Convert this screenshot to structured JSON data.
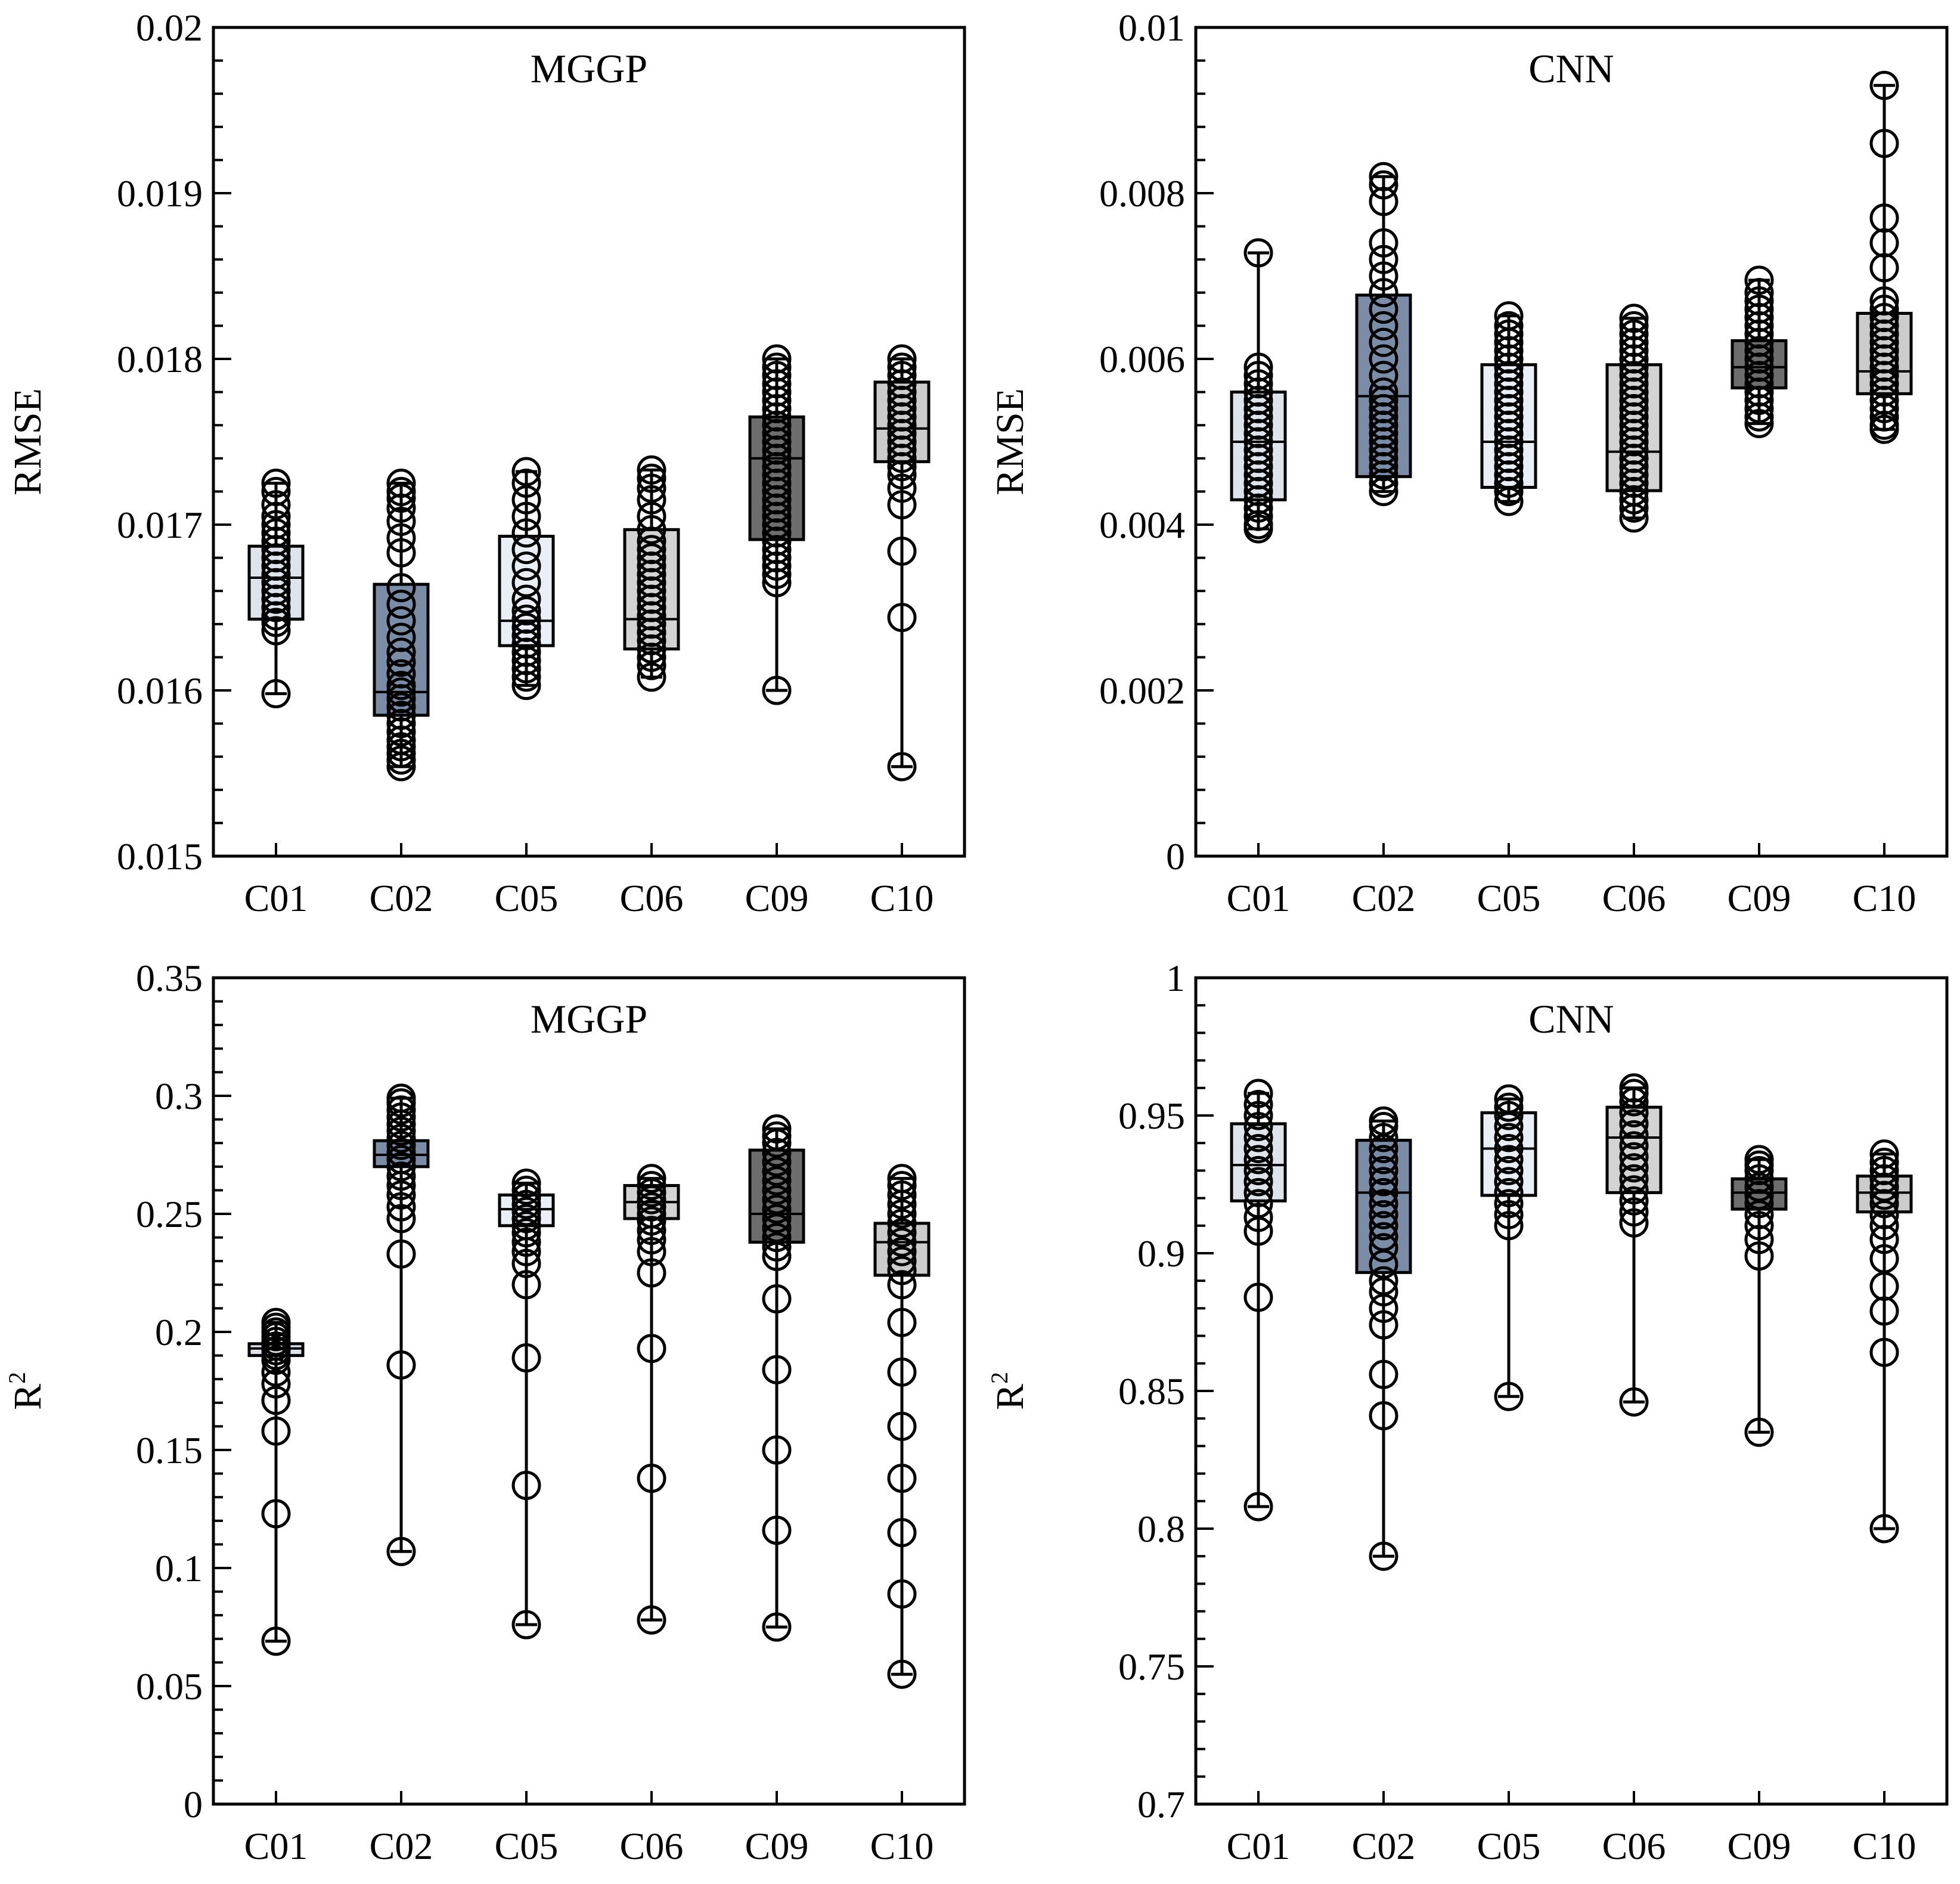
{
  "colors": {
    "C01": "#dfe4ea",
    "C02": "#7a8ca6",
    "C05": "#e9eff4",
    "C06": "#d3d3d3",
    "C09": "#6d6d6d",
    "C10": "#cccccc"
  },
  "chart_data": [
    {
      "type": "box",
      "title": "MGGP",
      "ylabel": "RMSE",
      "ylabel_sup": "",
      "ylim": [
        0.015,
        0.02
      ],
      "yticks": [
        0.015,
        0.016,
        0.017,
        0.018,
        0.019,
        0.02
      ],
      "ytick_labels": [
        "0.015",
        "0.016",
        "0.017",
        "0.018",
        "0.019",
        "0.02"
      ],
      "minor_step": 0.0002,
      "categories": [
        "C01",
        "C02",
        "C05",
        "C06",
        "C09",
        "C10"
      ],
      "boxes": [
        {
          "q1": 0.01643,
          "median": 0.01668,
          "q3": 0.01687,
          "whisker_low": 0.01598,
          "whisker_high": 0.01725,
          "points": [
            0.01598,
            0.01636,
            0.01641,
            0.01645,
            0.0165,
            0.01655,
            0.0166,
            0.01665,
            0.0167,
            0.01675,
            0.0168,
            0.01685,
            0.0169,
            0.01695,
            0.017,
            0.01705,
            0.01712,
            0.0172,
            0.01725
          ]
        },
        {
          "q1": 0.01585,
          "median": 0.01599,
          "q3": 0.01664,
          "whisker_low": 0.01554,
          "whisker_high": 0.01725,
          "points": [
            0.01554,
            0.01558,
            0.01562,
            0.01566,
            0.0157,
            0.01575,
            0.0158,
            0.01585,
            0.0159,
            0.01595,
            0.01599,
            0.01603,
            0.0161,
            0.01617,
            0.01623,
            0.01632,
            0.01642,
            0.01652,
            0.01662,
            0.01683,
            0.01692,
            0.01702,
            0.0171,
            0.01716,
            0.0172,
            0.01725
          ]
        },
        {
          "q1": 0.01627,
          "median": 0.01642,
          "q3": 0.01693,
          "whisker_low": 0.01603,
          "whisker_high": 0.01732,
          "points": [
            0.01603,
            0.01608,
            0.01613,
            0.01618,
            0.01623,
            0.01628,
            0.01633,
            0.01638,
            0.01643,
            0.01648,
            0.01655,
            0.01665,
            0.01675,
            0.01685,
            0.01695,
            0.01705,
            0.01715,
            0.01725,
            0.01732
          ]
        },
        {
          "q1": 0.01625,
          "median": 0.01643,
          "q3": 0.01697,
          "whisker_low": 0.01608,
          "whisker_high": 0.01733,
          "points": [
            0.01608,
            0.01615,
            0.0162,
            0.01625,
            0.0163,
            0.01635,
            0.0164,
            0.01645,
            0.0165,
            0.01655,
            0.0166,
            0.01665,
            0.0167,
            0.01675,
            0.0168,
            0.01685,
            0.0169,
            0.01697,
            0.01705,
            0.01715,
            0.01722,
            0.01728,
            0.01733
          ]
        },
        {
          "q1": 0.01691,
          "median": 0.0174,
          "q3": 0.01765,
          "whisker_low": 0.016,
          "whisker_high": 0.018,
          "points": [
            0.016,
            0.01665,
            0.0167,
            0.01675,
            0.0168,
            0.01685,
            0.0169,
            0.01695,
            0.017,
            0.01705,
            0.0171,
            0.01715,
            0.0172,
            0.01725,
            0.0173,
            0.01735,
            0.0174,
            0.01745,
            0.0175,
            0.01755,
            0.0176,
            0.01765,
            0.0177,
            0.01775,
            0.0178,
            0.01785,
            0.0179,
            0.01795,
            0.018
          ]
        },
        {
          "q1": 0.01738,
          "median": 0.01758,
          "q3": 0.01786,
          "whisker_low": 0.01554,
          "whisker_high": 0.018,
          "points": [
            0.01554,
            0.01644,
            0.01684,
            0.01712,
            0.01722,
            0.0173,
            0.01735,
            0.0174,
            0.01745,
            0.0175,
            0.01755,
            0.0176,
            0.01765,
            0.0177,
            0.01775,
            0.0178,
            0.01785,
            0.0179,
            0.01795,
            0.018
          ]
        }
      ]
    },
    {
      "type": "box",
      "title": "CNN",
      "ylabel": "RMSE",
      "ylabel_sup": "",
      "ylim": [
        0,
        0.01
      ],
      "yticks": [
        0,
        0.002,
        0.004,
        0.006,
        0.008,
        0.01
      ],
      "ytick_labels": [
        "0",
        "0.002",
        "0.004",
        "0.006",
        "0.008",
        "0.01"
      ],
      "minor_step": 0.0004,
      "categories": [
        "C01",
        "C02",
        "C05",
        "C06",
        "C09",
        "C10"
      ],
      "boxes": [
        {
          "q1": 0.0043,
          "median": 0.005,
          "q3": 0.0056,
          "whisker_low": 0.00395,
          "whisker_high": 0.00728,
          "points": [
            0.00395,
            0.004,
            0.0041,
            0.0042,
            0.0043,
            0.0044,
            0.0045,
            0.0046,
            0.0047,
            0.0048,
            0.0049,
            0.005,
            0.0051,
            0.0052,
            0.0053,
            0.0054,
            0.0055,
            0.0056,
            0.0057,
            0.0058,
            0.0059,
            0.00728
          ]
        },
        {
          "q1": 0.00458,
          "median": 0.00555,
          "q3": 0.00677,
          "whisker_low": 0.0044,
          "whisker_high": 0.0082,
          "points": [
            0.0044,
            0.0045,
            0.0046,
            0.0047,
            0.0048,
            0.0049,
            0.005,
            0.0051,
            0.0052,
            0.0053,
            0.0054,
            0.0055,
            0.0056,
            0.0058,
            0.006,
            0.0062,
            0.0064,
            0.0066,
            0.0068,
            0.007,
            0.0072,
            0.0074,
            0.0079,
            0.0081,
            0.0082
          ]
        },
        {
          "q1": 0.00445,
          "median": 0.005,
          "q3": 0.00593,
          "whisker_low": 0.00428,
          "whisker_high": 0.00652,
          "points": [
            0.00428,
            0.0044,
            0.0045,
            0.0046,
            0.0047,
            0.0048,
            0.0049,
            0.005,
            0.0051,
            0.0052,
            0.0053,
            0.0054,
            0.0055,
            0.0056,
            0.0057,
            0.0058,
            0.0059,
            0.006,
            0.0061,
            0.0062,
            0.0063,
            0.0064,
            0.00652
          ]
        },
        {
          "q1": 0.00441,
          "median": 0.00488,
          "q3": 0.00593,
          "whisker_low": 0.00408,
          "whisker_high": 0.00649,
          "points": [
            0.00408,
            0.0042,
            0.0043,
            0.0044,
            0.0045,
            0.0046,
            0.0047,
            0.0048,
            0.0049,
            0.005,
            0.0051,
            0.0052,
            0.0053,
            0.0054,
            0.0055,
            0.0056,
            0.0057,
            0.0058,
            0.0059,
            0.006,
            0.0061,
            0.0062,
            0.0063,
            0.0064,
            0.00649
          ]
        },
        {
          "q1": 0.00565,
          "median": 0.0059,
          "q3": 0.00622,
          "whisker_low": 0.00522,
          "whisker_high": 0.00695,
          "points": [
            0.00522,
            0.0053,
            0.0054,
            0.0055,
            0.0056,
            0.0057,
            0.0058,
            0.0059,
            0.006,
            0.0061,
            0.0062,
            0.0063,
            0.0064,
            0.0065,
            0.0066,
            0.0067,
            0.0068,
            0.00695
          ]
        },
        {
          "q1": 0.00558,
          "median": 0.00585,
          "q3": 0.00655,
          "whisker_low": 0.00515,
          "whisker_high": 0.0093,
          "points": [
            0.00515,
            0.0052,
            0.0053,
            0.0054,
            0.0055,
            0.0056,
            0.0057,
            0.0058,
            0.0059,
            0.006,
            0.0061,
            0.0062,
            0.0063,
            0.0064,
            0.0065,
            0.0066,
            0.0067,
            0.0071,
            0.0074,
            0.0077,
            0.0086,
            0.0093
          ]
        }
      ]
    },
    {
      "type": "box",
      "title": "MGGP",
      "ylabel": "R",
      "ylabel_sup": "2",
      "ylim": [
        0,
        0.35
      ],
      "yticks": [
        0,
        0.05,
        0.1,
        0.15,
        0.2,
        0.25,
        0.3,
        0.35
      ],
      "ytick_labels": [
        "0",
        "0.05",
        "0.1",
        "0.15",
        "0.2",
        "0.25",
        "0.3",
        "0.35"
      ],
      "minor_step": 0.01,
      "categories": [
        "C01",
        "C02",
        "C05",
        "C06",
        "C09",
        "C10"
      ],
      "boxes": [
        {
          "q1": 0.19,
          "median": 0.193,
          "q3": 0.195,
          "whisker_low": 0.069,
          "whisker_high": 0.204,
          "points": [
            0.069,
            0.123,
            0.158,
            0.171,
            0.178,
            0.183,
            0.188,
            0.19,
            0.192,
            0.194,
            0.196,
            0.198,
            0.2,
            0.202,
            0.204
          ]
        },
        {
          "q1": 0.27,
          "median": 0.275,
          "q3": 0.281,
          "whisker_low": 0.107,
          "whisker_high": 0.299,
          "points": [
            0.107,
            0.186,
            0.233,
            0.248,
            0.253,
            0.258,
            0.262,
            0.266,
            0.27,
            0.273,
            0.276,
            0.279,
            0.282,
            0.285,
            0.288,
            0.291,
            0.294,
            0.297,
            0.299
          ]
        },
        {
          "q1": 0.245,
          "median": 0.252,
          "q3": 0.258,
          "whisker_low": 0.076,
          "whisker_high": 0.263,
          "points": [
            0.076,
            0.135,
            0.189,
            0.22,
            0.229,
            0.234,
            0.238,
            0.242,
            0.245,
            0.248,
            0.251,
            0.254,
            0.257,
            0.26,
            0.263
          ]
        },
        {
          "q1": 0.248,
          "median": 0.255,
          "q3": 0.262,
          "whisker_low": 0.078,
          "whisker_high": 0.265,
          "points": [
            0.078,
            0.138,
            0.193,
            0.225,
            0.234,
            0.239,
            0.243,
            0.247,
            0.25,
            0.253,
            0.256,
            0.259,
            0.262,
            0.265
          ]
        },
        {
          "q1": 0.238,
          "median": 0.25,
          "q3": 0.277,
          "whisker_low": 0.075,
          "whisker_high": 0.286,
          "points": [
            0.075,
            0.116,
            0.15,
            0.184,
            0.214,
            0.232,
            0.236,
            0.24,
            0.244,
            0.248,
            0.252,
            0.256,
            0.26,
            0.264,
            0.268,
            0.272,
            0.276,
            0.28,
            0.283,
            0.286
          ]
        },
        {
          "q1": 0.224,
          "median": 0.238,
          "q3": 0.246,
          "whisker_low": 0.055,
          "whisker_high": 0.265,
          "points": [
            0.055,
            0.089,
            0.115,
            0.138,
            0.16,
            0.183,
            0.204,
            0.22,
            0.226,
            0.23,
            0.234,
            0.238,
            0.242,
            0.246,
            0.25,
            0.254,
            0.258,
            0.262,
            0.265
          ]
        }
      ]
    },
    {
      "type": "box",
      "title": "CNN",
      "ylabel": "R",
      "ylabel_sup": "2",
      "ylim": [
        0.7,
        1
      ],
      "yticks": [
        0.7,
        0.75,
        0.8,
        0.85,
        0.9,
        0.95,
        1
      ],
      "ytick_labels": [
        "0.7",
        "0.75",
        "0.8",
        "0.85",
        "0.9",
        "0.95",
        "1"
      ],
      "minor_step": 0.01,
      "categories": [
        "C01",
        "C02",
        "C05",
        "C06",
        "C09",
        "C10"
      ],
      "boxes": [
        {
          "q1": 0.919,
          "median": 0.932,
          "q3": 0.947,
          "whisker_low": 0.808,
          "whisker_high": 0.958,
          "points": [
            0.808,
            0.884,
            0.908,
            0.913,
            0.918,
            0.922,
            0.926,
            0.93,
            0.934,
            0.938,
            0.942,
            0.946,
            0.95,
            0.954,
            0.958
          ]
        },
        {
          "q1": 0.893,
          "median": 0.922,
          "q3": 0.941,
          "whisker_low": 0.79,
          "whisker_high": 0.948,
          "points": [
            0.79,
            0.841,
            0.856,
            0.874,
            0.88,
            0.886,
            0.89,
            0.896,
            0.902,
            0.906,
            0.91,
            0.914,
            0.918,
            0.922,
            0.926,
            0.93,
            0.934,
            0.938,
            0.942,
            0.946,
            0.948
          ]
        },
        {
          "q1": 0.921,
          "median": 0.938,
          "q3": 0.951,
          "whisker_low": 0.848,
          "whisker_high": 0.956,
          "points": [
            0.848,
            0.91,
            0.914,
            0.918,
            0.922,
            0.926,
            0.93,
            0.934,
            0.938,
            0.942,
            0.946,
            0.95,
            0.953,
            0.956
          ]
        },
        {
          "q1": 0.922,
          "median": 0.942,
          "q3": 0.953,
          "whisker_low": 0.846,
          "whisker_high": 0.96,
          "points": [
            0.846,
            0.911,
            0.915,
            0.919,
            0.923,
            0.927,
            0.931,
            0.935,
            0.939,
            0.943,
            0.947,
            0.951,
            0.955,
            0.958,
            0.96
          ]
        },
        {
          "q1": 0.916,
          "median": 0.922,
          "q3": 0.927,
          "whisker_low": 0.835,
          "whisker_high": 0.934,
          "points": [
            0.835,
            0.899,
            0.905,
            0.91,
            0.914,
            0.918,
            0.921,
            0.924,
            0.927,
            0.93,
            0.932,
            0.934
          ]
        },
        {
          "q1": 0.915,
          "median": 0.922,
          "q3": 0.928,
          "whisker_low": 0.8,
          "whisker_high": 0.936,
          "points": [
            0.8,
            0.864,
            0.879,
            0.888,
            0.898,
            0.905,
            0.91,
            0.914,
            0.918,
            0.921,
            0.924,
            0.927,
            0.93,
            0.933,
            0.936
          ]
        }
      ]
    }
  ]
}
